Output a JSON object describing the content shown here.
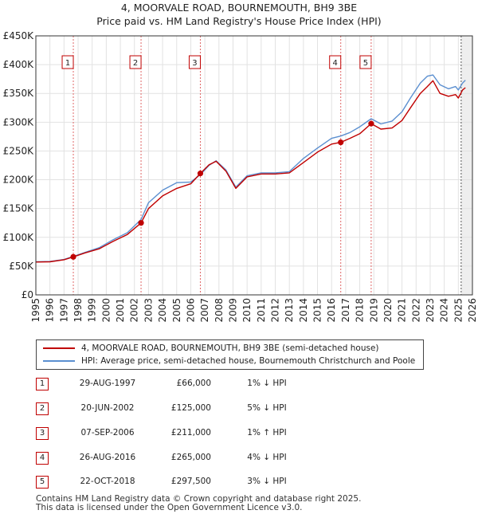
{
  "header": {
    "title_line1": "4, MOORVALE ROAD, BOURNEMOUTH, BH9 3BE",
    "title_line2": "Price paid vs. HM Land Registry's House Price Index (HPI)"
  },
  "chart_data": {
    "type": "line",
    "title": "4, MOORVALE ROAD, BOURNEMOUTH, BH9 3BE — Price paid vs. HM Land Registry's House Price Index (HPI)",
    "xlim": [
      1995,
      2026
    ],
    "ylim": [
      0,
      450000
    ],
    "x_ticks": [
      1995,
      1996,
      1997,
      1998,
      1999,
      2000,
      2001,
      2002,
      2003,
      2004,
      2005,
      2006,
      2007,
      2008,
      2009,
      2010,
      2011,
      2012,
      2013,
      2014,
      2015,
      2016,
      2017,
      2018,
      2019,
      2020,
      2021,
      2022,
      2023,
      2024,
      2025,
      2026
    ],
    "y_ticks": [
      0,
      50000,
      100000,
      150000,
      200000,
      250000,
      300000,
      350000,
      400000,
      450000
    ],
    "y_tick_labels": [
      "£0",
      "£50K",
      "£100K",
      "£150K",
      "£200K",
      "£250K",
      "£300K",
      "£350K",
      "£400K",
      "£450K"
    ],
    "future_shade_from": 2025.2,
    "series": [
      {
        "name": "4, MOORVALE ROAD, BOURNEMOUTH, BH9 3BE (semi-detached house)",
        "color": "#c00000",
        "x": [
          1995.0,
          1996.0,
          1997.0,
          1997.66,
          1998.5,
          1999.5,
          2000.5,
          2001.5,
          2002.47,
          2003.0,
          2004.0,
          2005.0,
          2006.0,
          2006.68,
          2007.3,
          2007.8,
          2008.5,
          2009.2,
          2010.0,
          2011.0,
          2012.0,
          2013.0,
          2014.0,
          2015.0,
          2016.0,
          2016.65,
          2017.3,
          2018.0,
          2018.81,
          2019.5,
          2020.3,
          2021.0,
          2021.6,
          2022.3,
          2022.8,
          2023.2,
          2023.7,
          2024.3,
          2024.8,
          2025.0,
          2025.3,
          2025.5
        ],
        "values": [
          57000,
          57500,
          61000,
          66000,
          73000,
          80000,
          93000,
          105000,
          125000,
          150000,
          172000,
          185000,
          193000,
          211000,
          226000,
          232000,
          215000,
          185000,
          205000,
          210000,
          210000,
          212000,
          230000,
          248000,
          262000,
          265000,
          272000,
          280000,
          297500,
          288000,
          290000,
          303000,
          325000,
          350000,
          362000,
          372000,
          350000,
          345000,
          348000,
          342000,
          356000,
          360000
        ]
      },
      {
        "name": "HPI: Average price, semi-detached house, Bournemouth Christchurch and Poole",
        "color": "#5b8fd0",
        "x": [
          1995.0,
          1996.0,
          1997.0,
          1997.66,
          1998.5,
          1999.5,
          2000.5,
          2001.5,
          2002.47,
          2003.0,
          2004.0,
          2005.0,
          2006.0,
          2006.68,
          2007.3,
          2007.8,
          2008.5,
          2009.2,
          2010.0,
          2011.0,
          2012.0,
          2013.0,
          2014.0,
          2015.0,
          2016.0,
          2016.65,
          2017.3,
          2018.0,
          2018.81,
          2019.5,
          2020.3,
          2021.0,
          2021.6,
          2022.3,
          2022.8,
          2023.2,
          2023.7,
          2024.3,
          2024.8,
          2025.0,
          2025.3,
          2025.5
        ],
        "values": [
          57500,
          58000,
          61500,
          66700,
          74000,
          82000,
          96000,
          108000,
          131000,
          160000,
          182000,
          195000,
          196000,
          209000,
          225000,
          233000,
          217000,
          187000,
          207000,
          212000,
          212000,
          214000,
          237000,
          255000,
          272000,
          276000,
          282000,
          292000,
          306000,
          297000,
          302000,
          318000,
          342000,
          368000,
          380000,
          382000,
          365000,
          358000,
          362000,
          356000,
          368000,
          373000
        ]
      }
    ],
    "sale_markers": [
      {
        "label": "1",
        "x": 1997.66,
        "value": 66000
      },
      {
        "label": "2",
        "x": 2002.47,
        "value": 125000
      },
      {
        "label": "3",
        "x": 2006.68,
        "value": 211000
      },
      {
        "label": "4",
        "x": 2016.65,
        "value": 265000
      },
      {
        "label": "5",
        "x": 2018.81,
        "value": 297500
      }
    ]
  },
  "legend": {
    "series1_label": "4, MOORVALE ROAD, BOURNEMOUTH, BH9 3BE (semi-detached house)",
    "series2_label": "HPI: Average price, semi-detached house, Bournemouth Christchurch and Poole",
    "series1_color": "#c00000",
    "series2_color": "#5b8fd0"
  },
  "transactions": [
    {
      "num": "1",
      "date": "29-AUG-1997",
      "price": "£66,000",
      "hpi": "1% ↓ HPI"
    },
    {
      "num": "2",
      "date": "20-JUN-2002",
      "price": "£125,000",
      "hpi": "5% ↓ HPI"
    },
    {
      "num": "3",
      "date": "07-SEP-2006",
      "price": "£211,000",
      "hpi": "1% ↑ HPI"
    },
    {
      "num": "4",
      "date": "26-AUG-2016",
      "price": "£265,000",
      "hpi": "4% ↓ HPI"
    },
    {
      "num": "5",
      "date": "22-OCT-2018",
      "price": "£297,500",
      "hpi": "3% ↓ HPI"
    }
  ],
  "footer": {
    "line1": "Contains HM Land Registry data © Crown copyright and database right 2025.",
    "line2": "This data is licensed under the Open Government Licence v3.0."
  }
}
